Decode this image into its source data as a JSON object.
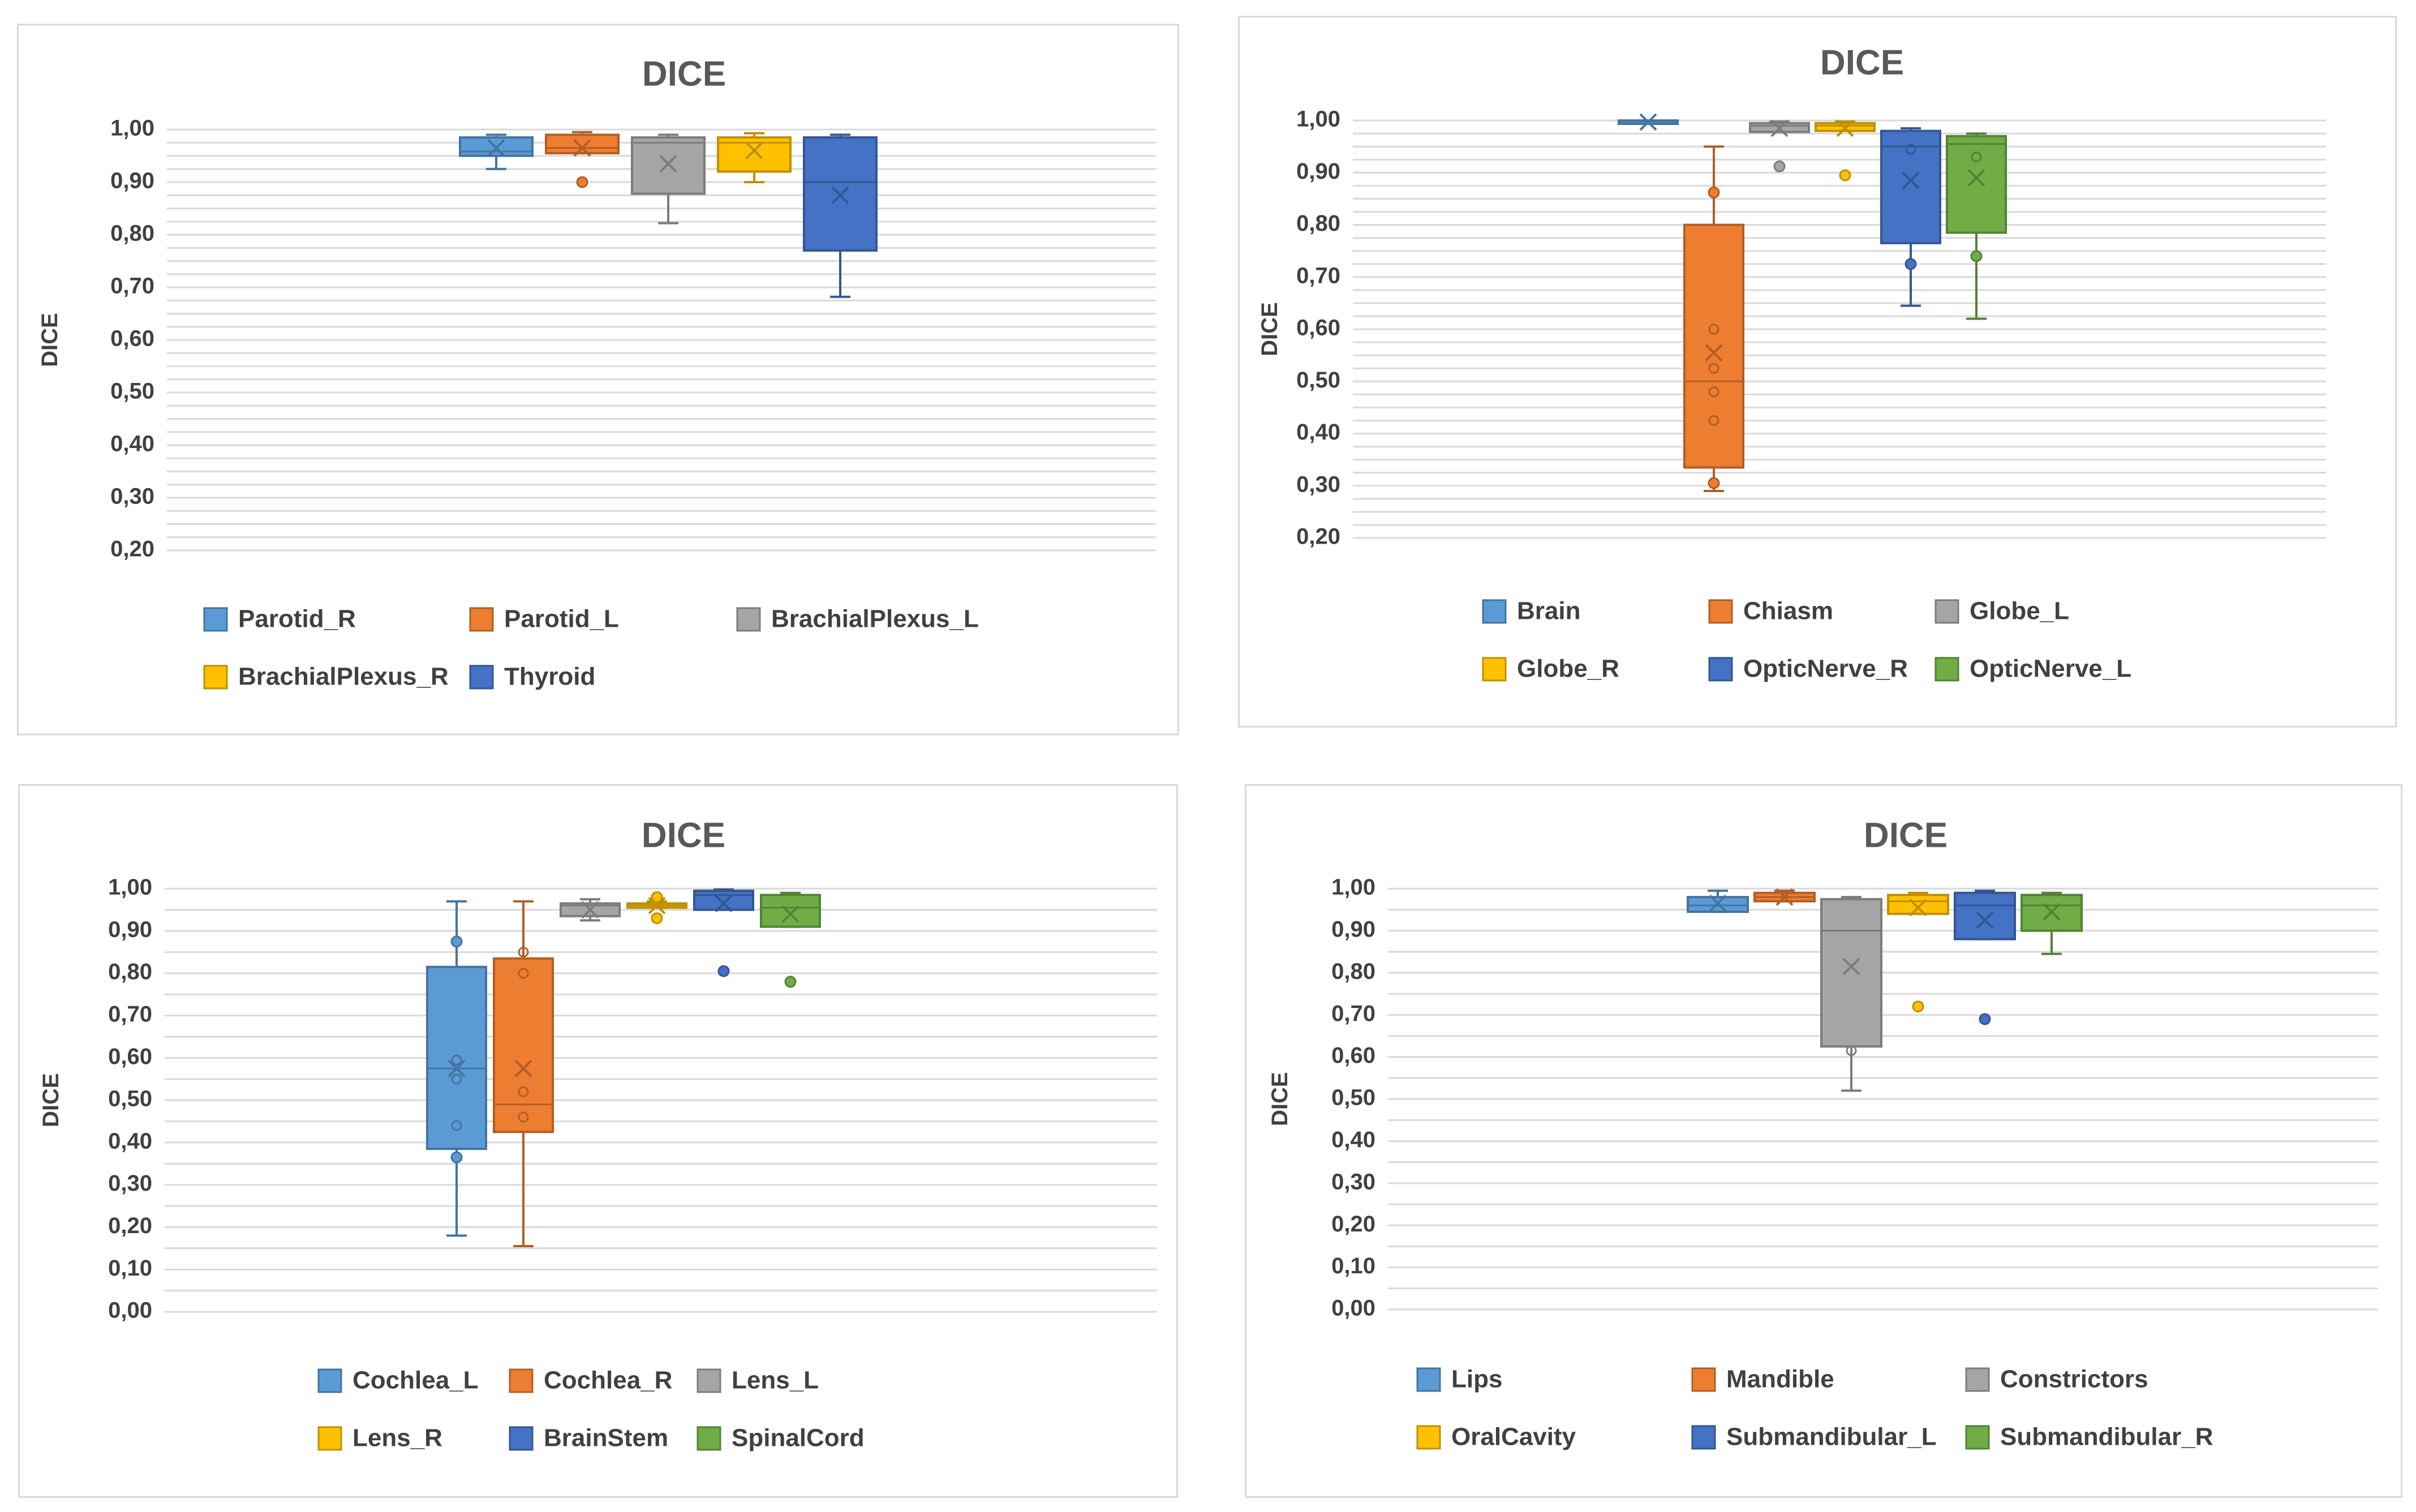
{
  "chart_data": [
    {
      "type": "box",
      "title": "DICE",
      "ylabel": "DICE",
      "ylim": [
        0.2,
        1.0
      ],
      "ticks": [
        "1,00",
        "0,90",
        "0,80",
        "0,70",
        "0,60",
        "0,50",
        "0,40",
        "0,30",
        "0,20"
      ],
      "tick_values": [
        1.0,
        0.9,
        0.8,
        0.7,
        0.6,
        0.5,
        0.4,
        0.3,
        0.2
      ],
      "series": [
        {
          "name": "Parotid_R",
          "color": "#5B9BD5",
          "whisker_low": 0.925,
          "q1": 0.95,
          "median": 0.958,
          "q3": 0.985,
          "whisker_high": 0.99,
          "mean": 0.965,
          "outliers": []
        },
        {
          "name": "Parotid_L",
          "color": "#ED7D31",
          "whisker_low": 0.955,
          "q1": 0.955,
          "median": 0.965,
          "q3": 0.99,
          "whisker_high": 0.995,
          "mean": 0.965,
          "outliers": [
            0.9
          ]
        },
        {
          "name": "BrachialPlexus_L",
          "color": "#A5A5A5",
          "whisker_low": 0.822,
          "q1": 0.878,
          "median": 0.975,
          "q3": 0.985,
          "whisker_high": 0.99,
          "mean": 0.935,
          "outliers": []
        },
        {
          "name": "BrachialPlexus_R",
          "color": "#FFC000",
          "whisker_low": 0.9,
          "q1": 0.92,
          "median": 0.975,
          "q3": 0.985,
          "whisker_high": 0.993,
          "mean": 0.96,
          "outliers": []
        },
        {
          "name": "Thyroid",
          "color": "#4472C4",
          "whisker_low": 0.682,
          "q1": 0.77,
          "median": 0.9,
          "q3": 0.985,
          "whisker_high": 0.99,
          "mean": 0.875,
          "outliers": []
        }
      ],
      "legend": [
        "Parotid_R",
        "Parotid_L",
        "BrachialPlexus_L",
        "BrachialPlexus_R",
        "Thyroid"
      ]
    },
    {
      "type": "box",
      "title": "DICE",
      "ylabel": "DICE",
      "ylim": [
        0.2,
        1.0
      ],
      "ticks": [
        "1,00",
        "0,90",
        "0,80",
        "0,70",
        "0,60",
        "0,50",
        "0,40",
        "0,30",
        "0,20"
      ],
      "tick_values": [
        1.0,
        0.9,
        0.8,
        0.7,
        0.6,
        0.5,
        0.4,
        0.3,
        0.2
      ],
      "series": [
        {
          "name": "Brain",
          "color": "#5B9BD5",
          "whisker_low": 0.995,
          "q1": 0.995,
          "median": 0.998,
          "q3": 1.0,
          "whisker_high": 1.0,
          "mean": 0.997,
          "outliers": []
        },
        {
          "name": "Chiasm",
          "color": "#ED7D31",
          "whisker_low": 0.29,
          "q1": 0.335,
          "median": 0.5,
          "q3": 0.8,
          "whisker_high": 0.95,
          "mean": 0.555,
          "outliers": [
            0.305,
            0.862
          ],
          "points": [
            0.425,
            0.48,
            0.525,
            0.6
          ]
        },
        {
          "name": "Globe_L",
          "color": "#A5A5A5",
          "whisker_low": 0.978,
          "q1": 0.978,
          "median": 0.99,
          "q3": 0.995,
          "whisker_high": 0.998,
          "mean": 0.985,
          "outliers": [
            0.912
          ]
        },
        {
          "name": "Globe_R",
          "color": "#FFC000",
          "whisker_low": 0.98,
          "q1": 0.98,
          "median": 0.99,
          "q3": 0.995,
          "whisker_high": 0.998,
          "mean": 0.985,
          "outliers": [
            0.895
          ]
        },
        {
          "name": "OpticNerve_R",
          "color": "#4472C4",
          "whisker_low": 0.645,
          "q1": 0.765,
          "median": 0.95,
          "q3": 0.98,
          "whisker_high": 0.985,
          "mean": 0.885,
          "outliers": [
            0.725
          ],
          "points": [
            0.945
          ]
        },
        {
          "name": "OpticNerve_L",
          "color": "#70AD47",
          "whisker_low": 0.62,
          "q1": 0.785,
          "median": 0.955,
          "q3": 0.97,
          "whisker_high": 0.975,
          "mean": 0.89,
          "outliers": [
            0.74
          ],
          "points": [
            0.93
          ]
        }
      ],
      "legend": [
        "Brain",
        "Chiasm",
        "Globe_L",
        "Globe_R",
        "OpticNerve_R",
        "OpticNerve_L"
      ]
    },
    {
      "type": "box",
      "title": "DICE",
      "ylabel": "DICE",
      "ylim": [
        0.0,
        1.0
      ],
      "ticks": [
        "1,00",
        "0,90",
        "0,80",
        "0,70",
        "0,60",
        "0,50",
        "0,40",
        "0,30",
        "0,20",
        "0,10",
        "0,00"
      ],
      "tick_values": [
        1.0,
        0.9,
        0.8,
        0.7,
        0.6,
        0.5,
        0.4,
        0.3,
        0.2,
        0.1,
        0.0
      ],
      "series": [
        {
          "name": "Cochlea_L",
          "color": "#5B9BD5",
          "whisker_low": 0.18,
          "q1": 0.385,
          "median": 0.575,
          "q3": 0.815,
          "whisker_high": 0.97,
          "mean": 0.575,
          "outliers": [
            0.365,
            0.875
          ],
          "points": [
            0.44,
            0.55,
            0.595
          ]
        },
        {
          "name": "Cochlea_R",
          "color": "#ED7D31",
          "whisker_low": 0.155,
          "q1": 0.425,
          "median": 0.49,
          "q3": 0.835,
          "whisker_high": 0.97,
          "mean": 0.575,
          "outliers": [],
          "points": [
            0.46,
            0.52,
            0.8,
            0.85
          ]
        },
        {
          "name": "Lens_L",
          "color": "#A5A5A5",
          "whisker_low": 0.925,
          "q1": 0.935,
          "median": 0.96,
          "q3": 0.965,
          "whisker_high": 0.975,
          "mean": 0.95,
          "outliers": []
        },
        {
          "name": "Lens_R",
          "color": "#FFC000",
          "whisker_low": 0.955,
          "q1": 0.955,
          "median": 0.96,
          "q3": 0.965,
          "whisker_high": 0.97,
          "mean": 0.96,
          "outliers": [
            0.93,
            0.98
          ]
        },
        {
          "name": "BrainStem",
          "color": "#4472C4",
          "whisker_low": 0.95,
          "q1": 0.95,
          "median": 0.985,
          "q3": 0.995,
          "whisker_high": 0.998,
          "mean": 0.965,
          "outliers": [
            0.805
          ]
        },
        {
          "name": "SpinalCord",
          "color": "#70AD47",
          "whisker_low": 0.91,
          "q1": 0.91,
          "median": 0.955,
          "q3": 0.985,
          "whisker_high": 0.99,
          "mean": 0.94,
          "outliers": [
            0.78
          ]
        }
      ],
      "legend": [
        "Cochlea_L",
        "Cochlea_R",
        "Lens_L",
        "Lens_R",
        "BrainStem",
        "SpinalCord"
      ]
    },
    {
      "type": "box",
      "title": "DICE",
      "ylabel": "DICE",
      "ylim": [
        0.0,
        1.0
      ],
      "ticks": [
        "1,00",
        "0,90",
        "0,80",
        "0,70",
        "0,60",
        "0,50",
        "0,40",
        "0,30",
        "0,20",
        "0,10",
        "0,00"
      ],
      "tick_values": [
        1.0,
        0.9,
        0.8,
        0.7,
        0.6,
        0.5,
        0.4,
        0.3,
        0.2,
        0.1,
        0.0
      ],
      "series": [
        {
          "name": "Lips",
          "color": "#5B9BD5",
          "whisker_low": 0.945,
          "q1": 0.945,
          "median": 0.96,
          "q3": 0.98,
          "whisker_high": 0.995,
          "mean": 0.965,
          "outliers": []
        },
        {
          "name": "Mandible",
          "color": "#ED7D31",
          "whisker_low": 0.97,
          "q1": 0.97,
          "median": 0.98,
          "q3": 0.99,
          "whisker_high": 0.995,
          "mean": 0.98,
          "outliers": []
        },
        {
          "name": "Constrictors",
          "color": "#A5A5A5",
          "whisker_low": 0.52,
          "q1": 0.625,
          "median": 0.9,
          "q3": 0.975,
          "whisker_high": 0.98,
          "mean": 0.815,
          "outliers": [],
          "points": [
            0.615
          ]
        },
        {
          "name": "OralCavity",
          "color": "#FFC000",
          "whisker_low": 0.94,
          "q1": 0.94,
          "median": 0.97,
          "q3": 0.985,
          "whisker_high": 0.99,
          "mean": 0.955,
          "outliers": [
            0.72
          ]
        },
        {
          "name": "Submandibular_L",
          "color": "#4472C4",
          "whisker_low": 0.88,
          "q1": 0.88,
          "median": 0.96,
          "q3": 0.99,
          "whisker_high": 0.995,
          "mean": 0.925,
          "outliers": [
            0.69
          ]
        },
        {
          "name": "Submandibular_R",
          "color": "#70AD47",
          "whisker_low": 0.845,
          "q1": 0.9,
          "median": 0.96,
          "q3": 0.985,
          "whisker_high": 0.99,
          "mean": 0.945,
          "outliers": []
        }
      ],
      "legend": [
        "Lips",
        "Mandible",
        "Constrictors",
        "OralCavity",
        "Submandibular_L",
        "Submandibular_R"
      ]
    }
  ]
}
